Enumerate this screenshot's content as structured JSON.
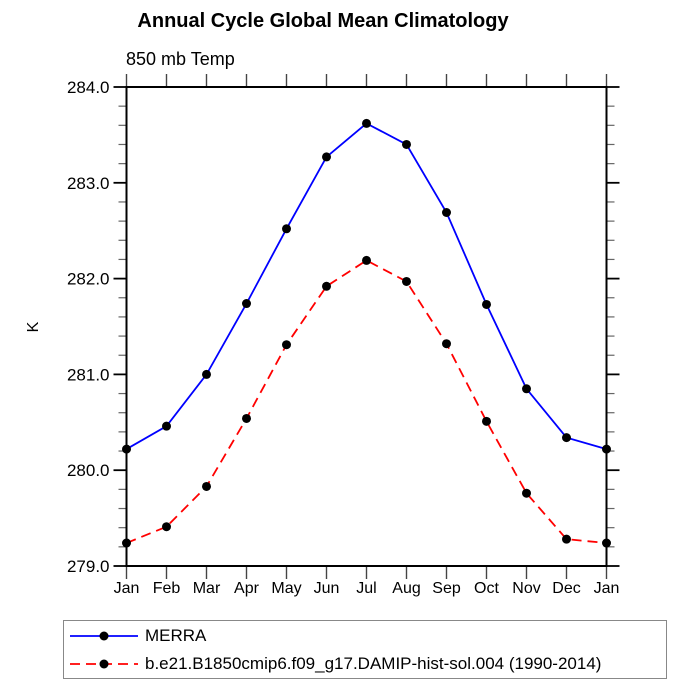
{
  "chart_data": {
    "type": "line",
    "title": "Annual Cycle Global Mean Climatology",
    "subtitle": "850 mb Temp",
    "ylabel": "K",
    "ylim": [
      279.0,
      284.0
    ],
    "yticks": [
      {
        "value": 279.0,
        "label": "279.0"
      },
      {
        "value": 280.0,
        "label": "280.0"
      },
      {
        "value": 281.0,
        "label": "281.0"
      },
      {
        "value": 282.0,
        "label": "282.0"
      },
      {
        "value": 283.0,
        "label": "283.0"
      },
      {
        "value": 284.0,
        "label": "284.0"
      }
    ],
    "ytick_minor_step": 0.2,
    "categories": [
      "Jan",
      "Feb",
      "Mar",
      "Apr",
      "May",
      "Jun",
      "Jul",
      "Aug",
      "Sep",
      "Oct",
      "Nov",
      "Dec",
      "Jan"
    ],
    "grid": false,
    "legend_position": "bottom",
    "marker": "filled-circle",
    "marker_color": "#000000",
    "series": [
      {
        "name": "MERRA",
        "color": "#0000ff",
        "line_style": "solid",
        "values": [
          280.22,
          280.46,
          281.0,
          281.74,
          282.52,
          283.27,
          283.62,
          283.4,
          282.69,
          281.73,
          280.85,
          280.34,
          280.22
        ]
      },
      {
        "name": "b.e21.B1850cmip6.f09_g17.DAMIP-hist-sol.004 (1990-2014)",
        "color": "#ff0000",
        "line_style": "dashed",
        "values": [
          279.24,
          279.41,
          279.83,
          280.54,
          281.31,
          281.92,
          282.19,
          281.97,
          281.32,
          280.51,
          279.76,
          279.28,
          279.24
        ]
      }
    ]
  }
}
